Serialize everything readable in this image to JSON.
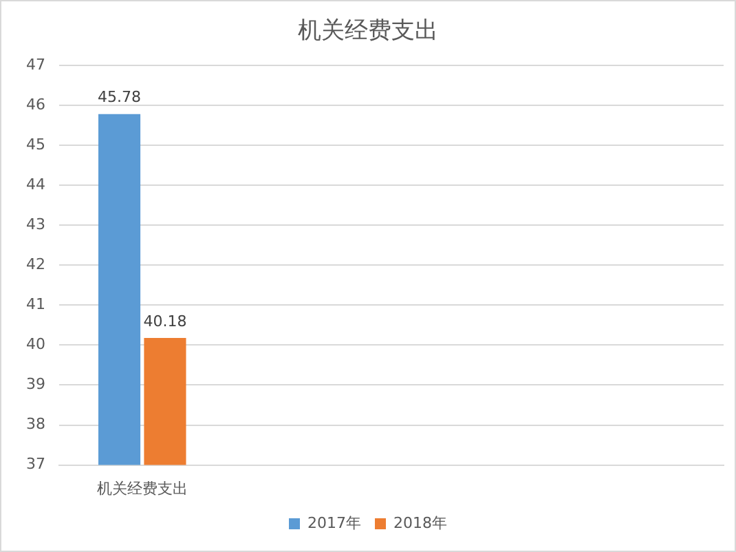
{
  "chart_data": {
    "type": "bar",
    "title": "机关经费支出",
    "categories": [
      "机关经费支出",
      null,
      null,
      null
    ],
    "series": [
      {
        "name": "2017年",
        "color": "#5b9bd5",
        "values": [
          45.78,
          null,
          null,
          null
        ]
      },
      {
        "name": "2018年",
        "color": "#ed7d31",
        "values": [
          40.18,
          null,
          null,
          null
        ]
      }
    ],
    "ylim": [
      37,
      47
    ],
    "yticks": [
      37,
      38,
      39,
      40,
      41,
      42,
      43,
      44,
      45,
      46,
      47
    ],
    "grid": "y",
    "legend": "bottom",
    "data_labels": true
  }
}
